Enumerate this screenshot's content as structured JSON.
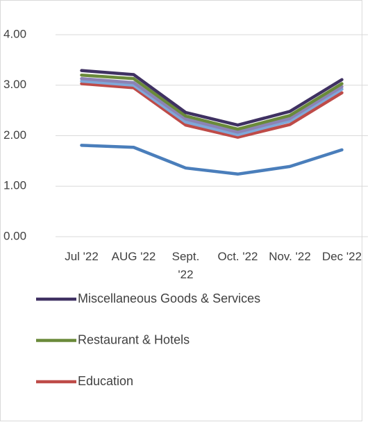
{
  "chart_data": {
    "type": "line",
    "categories": [
      "Jul '22",
      "AUG '22",
      "Sept. '22",
      "Oct. '22",
      "Nov. '22",
      "Dec '22"
    ],
    "ylim": [
      0,
      4
    ],
    "yticks": [
      {
        "value": 0,
        "label": "0.00"
      },
      {
        "value": 1,
        "label": "1.00"
      },
      {
        "value": 2,
        "label": "2.00"
      },
      {
        "value": 3,
        "label": "3.00"
      },
      {
        "value": 4,
        "label": "4.00"
      }
    ],
    "grid": true,
    "series": [
      {
        "color": "#4a7ebb",
        "values": [
          1.81,
          1.77,
          1.36,
          1.24,
          1.39,
          1.72
        ]
      },
      {
        "name": "Education",
        "color": "#be4b48",
        "values": [
          3.03,
          2.95,
          2.21,
          1.97,
          2.22,
          2.85
        ]
      },
      {
        "color": "#7fa8d8",
        "values": [
          3.08,
          3.0,
          2.27,
          2.02,
          2.29,
          2.92
        ]
      },
      {
        "color": "#8c83b5",
        "values": [
          3.13,
          3.05,
          2.33,
          2.07,
          2.34,
          2.97
        ]
      },
      {
        "name": "Restaurant & Hotels",
        "color": "#6a8a3a",
        "values": [
          3.2,
          3.13,
          2.39,
          2.13,
          2.4,
          3.03
        ]
      },
      {
        "name": "Miscellaneous Goods & Services",
        "color": "#3f3162",
        "values": [
          3.29,
          3.21,
          2.46,
          2.21,
          2.48,
          3.11
        ]
      }
    ]
  }
}
